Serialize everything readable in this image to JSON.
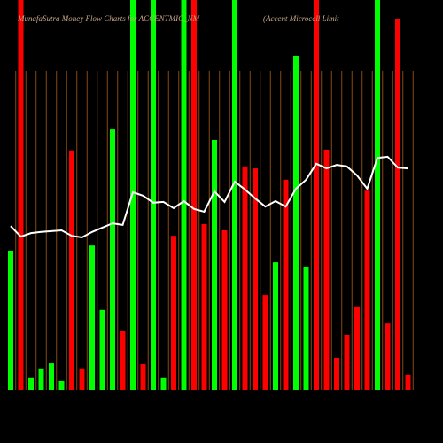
{
  "chart_data": {
    "type": "bar",
    "title": "MunafaSutra  Money Flow  Charts for ACCENTMIC_NM",
    "subtitle": "(Accent Microcell Limit",
    "categories": [
      null,
      null,
      null,
      null,
      null,
      null,
      null,
      null,
      null,
      null,
      null,
      null,
      null,
      null,
      null,
      null,
      null,
      null,
      null,
      null,
      null,
      null,
      null,
      null,
      null,
      null,
      null,
      null,
      null,
      null,
      null,
      null,
      null,
      null,
      null,
      null,
      null,
      null,
      null,
      null
    ],
    "ylim": [
      0,
      100
    ],
    "series": [
      {
        "type": "bar",
        "values": [
          35.7,
          100,
          3.0,
          5.5,
          6.8,
          2.3,
          61.4,
          5.5,
          37.0,
          20.5,
          66.8,
          15.0,
          100,
          6.6,
          100,
          3.0,
          39.5,
          100,
          100,
          42.5,
          64.1,
          40.9,
          100,
          57.3,
          56.8,
          24.3,
          32.7,
          53.9,
          85.7,
          31.6,
          100,
          61.6,
          8.2,
          14.1,
          21.4,
          51.1,
          100,
          17.0,
          95.0,
          3.9
        ],
        "colors": [
          "#00ff00",
          "#ff0000",
          "#00ff00",
          "#00ff00",
          "#00ff00",
          "#00ff00",
          "#ff0000",
          "#ff0000",
          "#00ff00",
          "#00ff00",
          "#00ff00",
          "#ff0000",
          "#00ff00",
          "#ff0000",
          "#00ff00",
          "#00ff00",
          "#ff0000",
          "#00ff00",
          "#ff0000",
          "#ff0000",
          "#00ff00",
          "#ff0000",
          "#00ff00",
          "#ff0000",
          "#ff0000",
          "#ff0000",
          "#00ff00",
          "#ff0000",
          "#00ff00",
          "#00ff00",
          "#ff0000",
          "#ff0000",
          "#ff0000",
          "#ff0000",
          "#ff0000",
          "#ff0000",
          "#00ff00",
          "#ff0000",
          "#ff0000",
          "#ff0000"
        ]
      },
      {
        "type": "line",
        "color": "#ffffff",
        "values": [
          42.0,
          39.3,
          40.2,
          40.5,
          40.7,
          40.9,
          39.5,
          39.1,
          40.5,
          41.6,
          42.7,
          42.3,
          50.7,
          49.8,
          48.0,
          48.2,
          46.6,
          48.4,
          46.4,
          45.7,
          50.9,
          48.2,
          53.4,
          51.4,
          49.1,
          47.0,
          48.4,
          47.0,
          51.6,
          53.9,
          58.0,
          56.8,
          57.7,
          57.3,
          55.0,
          51.6,
          59.5,
          59.8,
          57.0,
          56.8
        ]
      }
    ]
  }
}
